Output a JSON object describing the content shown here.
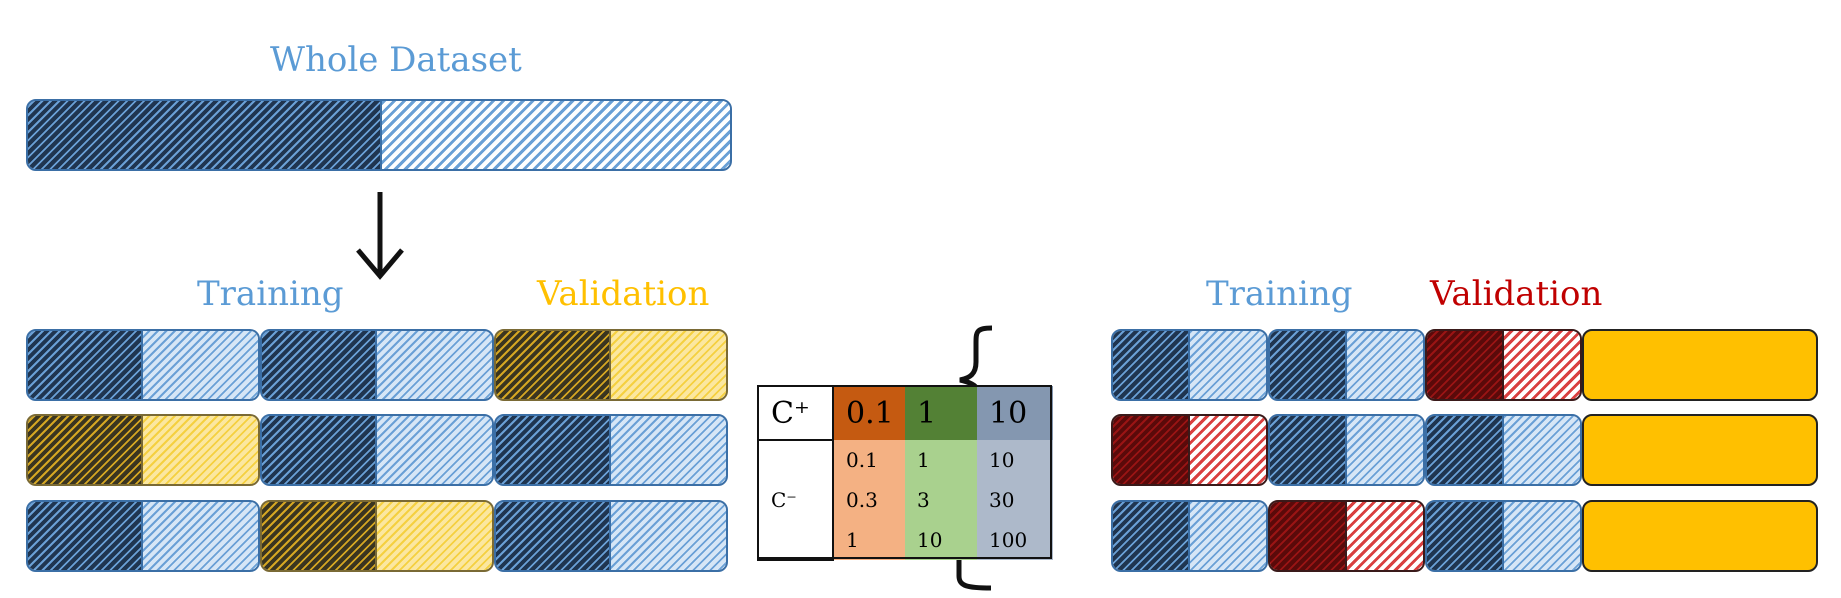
{
  "title": "Whole Dataset",
  "left_panel": {
    "training_label": "Training",
    "validation_label": "Validation"
  },
  "right_panel": {
    "training_label": "Training",
    "validation_label": "Validation"
  },
  "table": {
    "c_plus": "C⁺",
    "c_minus": "C⁻",
    "headers": [
      "0.1",
      "1",
      "10"
    ],
    "rows": [
      [
        "0.1",
        "1",
        "10"
      ],
      [
        "0.3",
        "3",
        "30"
      ],
      [
        "1",
        "10",
        "100"
      ]
    ]
  },
  "colors": {
    "training": "#5b9bd5",
    "validation_left": "#ffc000",
    "validation_right": "#c00000"
  }
}
